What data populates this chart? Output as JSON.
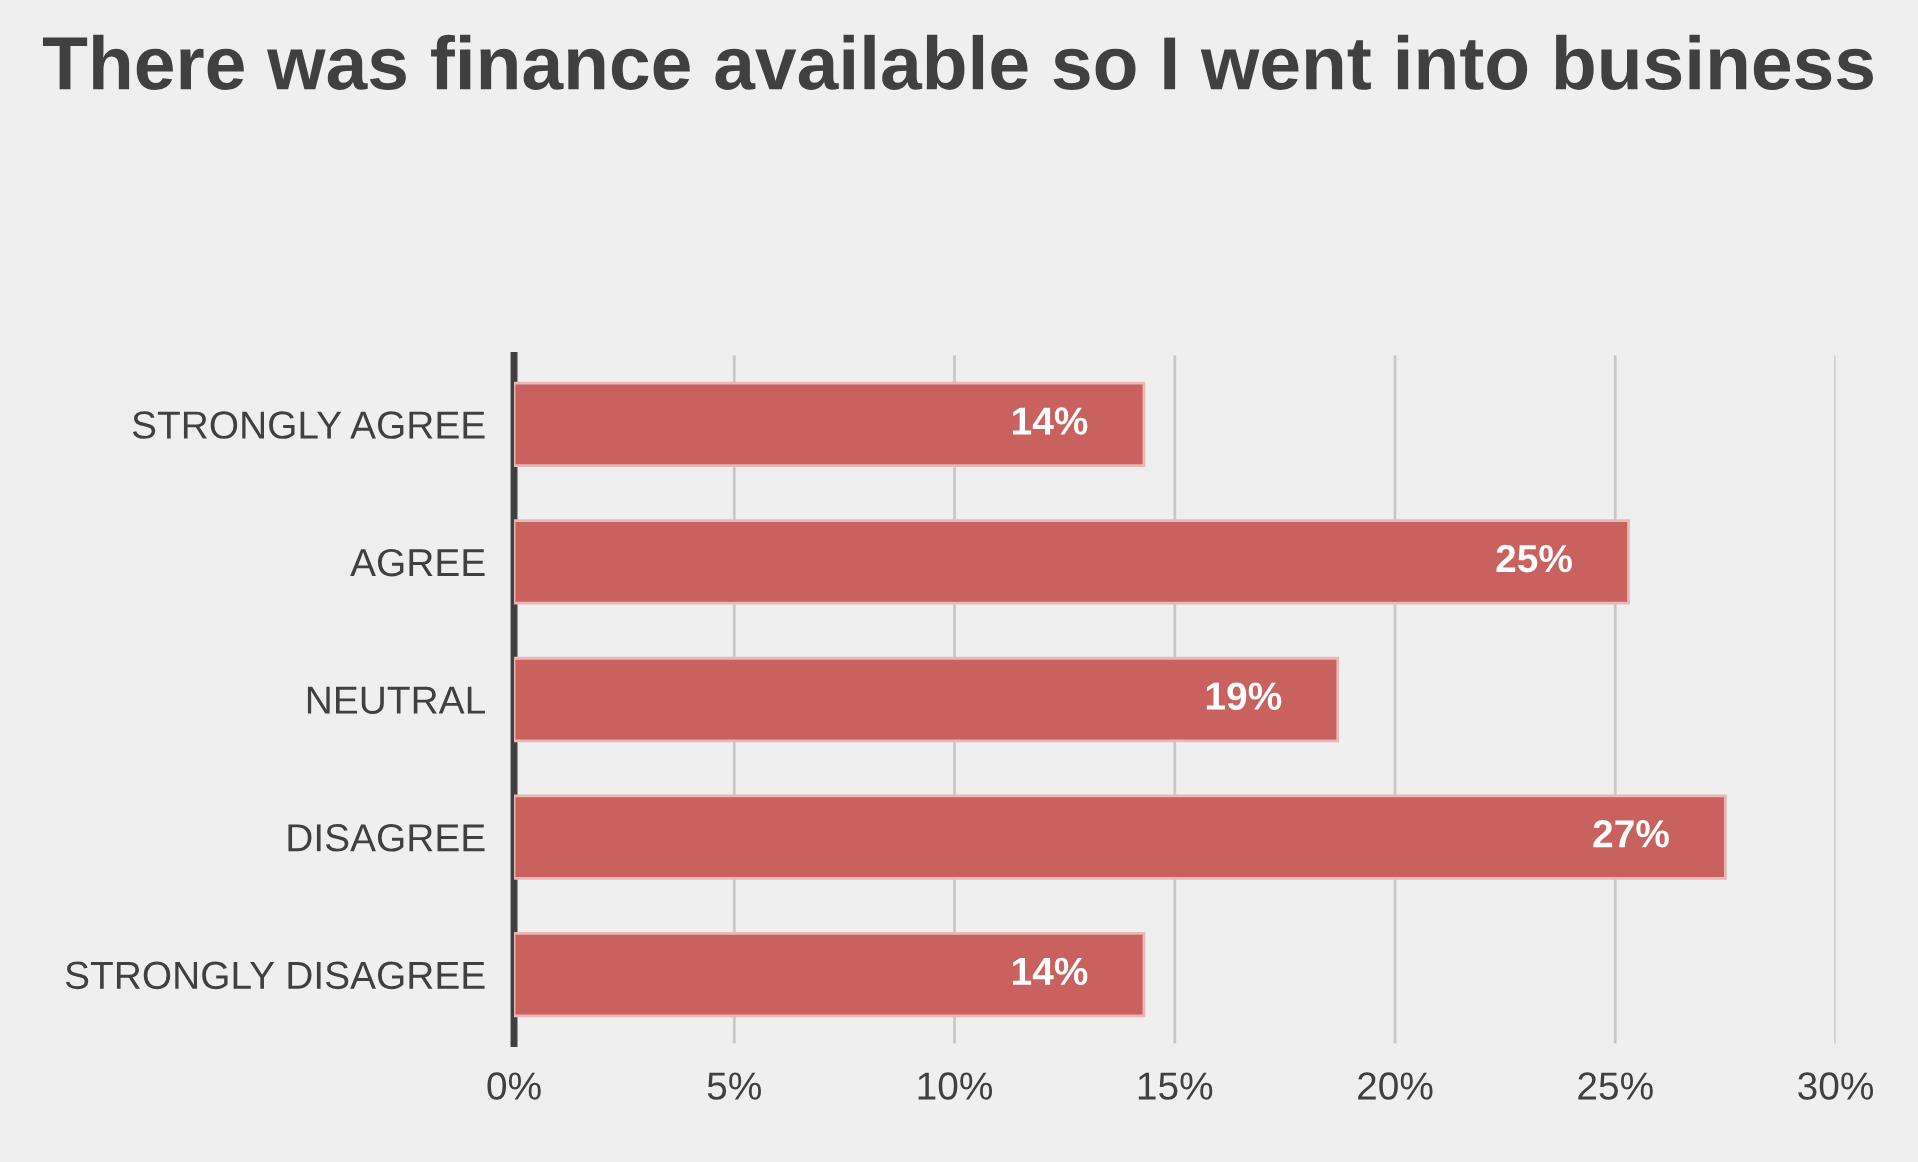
{
  "chart_data": {
    "type": "bar",
    "orientation": "horizontal",
    "title": "There was finance available so I went into business",
    "categories": [
      "STRONGLY AGREE",
      "AGREE",
      "NEUTRAL",
      "DISAGREE",
      "STRONGLY DISAGREE"
    ],
    "values": [
      14.3,
      25.3,
      18.7,
      27.5,
      14.3
    ],
    "value_labels": [
      "14%",
      "25%",
      "19%",
      "27%",
      "14%"
    ],
    "color": "#c9625f",
    "xlim": [
      0,
      30
    ],
    "xticks": [
      {
        "value": 0,
        "label": "0%"
      },
      {
        "value": 5,
        "label": "5%"
      },
      {
        "value": 10,
        "label": "10%"
      },
      {
        "value": 15,
        "label": "15%"
      },
      {
        "value": 20,
        "label": "20%"
      },
      {
        "value": 25,
        "label": "25%"
      },
      {
        "value": 30,
        "label": "30%"
      }
    ],
    "grid": "x",
    "legend": false
  }
}
